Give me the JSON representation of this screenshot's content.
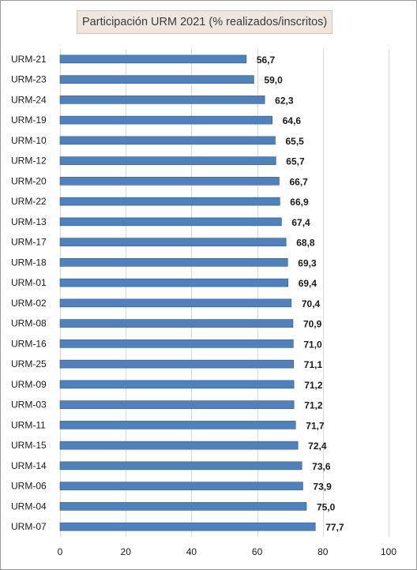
{
  "chart_data": {
    "type": "bar",
    "orientation": "horizontal",
    "title": "Participación URM 2021 (% realizados/inscritos)",
    "categories": [
      "URM-21",
      "URM-23",
      "URM-24",
      "URM-19",
      "URM-10",
      "URM-12",
      "URM-20",
      "URM-22",
      "URM-13",
      "URM-17",
      "URM-18",
      "URM-01",
      "URM-02",
      "URM-08",
      "URM-16",
      "URM-25",
      "URM-09",
      "URM-03",
      "URM-11",
      "URM-15",
      "URM-14",
      "URM-06",
      "URM-04",
      "URM-07"
    ],
    "values": [
      56.7,
      59.0,
      62.3,
      64.6,
      65.5,
      65.7,
      66.7,
      66.9,
      67.4,
      68.8,
      69.3,
      69.4,
      70.4,
      70.9,
      71.0,
      71.1,
      71.2,
      71.2,
      71.7,
      72.4,
      73.6,
      73.9,
      75.0,
      77.7
    ],
    "value_labels": [
      "56,7",
      "59,0",
      "62,3",
      "64,6",
      "65,5",
      "65,7",
      "66,7",
      "66,9",
      "67,4",
      "68,8",
      "69,3",
      "69,4",
      "70,4",
      "70,9",
      "71,0",
      "71,1",
      "71,2",
      "71,2",
      "71,7",
      "72,4",
      "73,6",
      "73,9",
      "75,0",
      "77,7"
    ],
    "xlim": [
      0,
      100
    ],
    "xticks": [
      0,
      20,
      40,
      60,
      80,
      100
    ],
    "grid": true,
    "bar_color": "#4f81bd",
    "bar_edge_color": "#2f5a8a",
    "grid_color": "#d9d9d9"
  }
}
